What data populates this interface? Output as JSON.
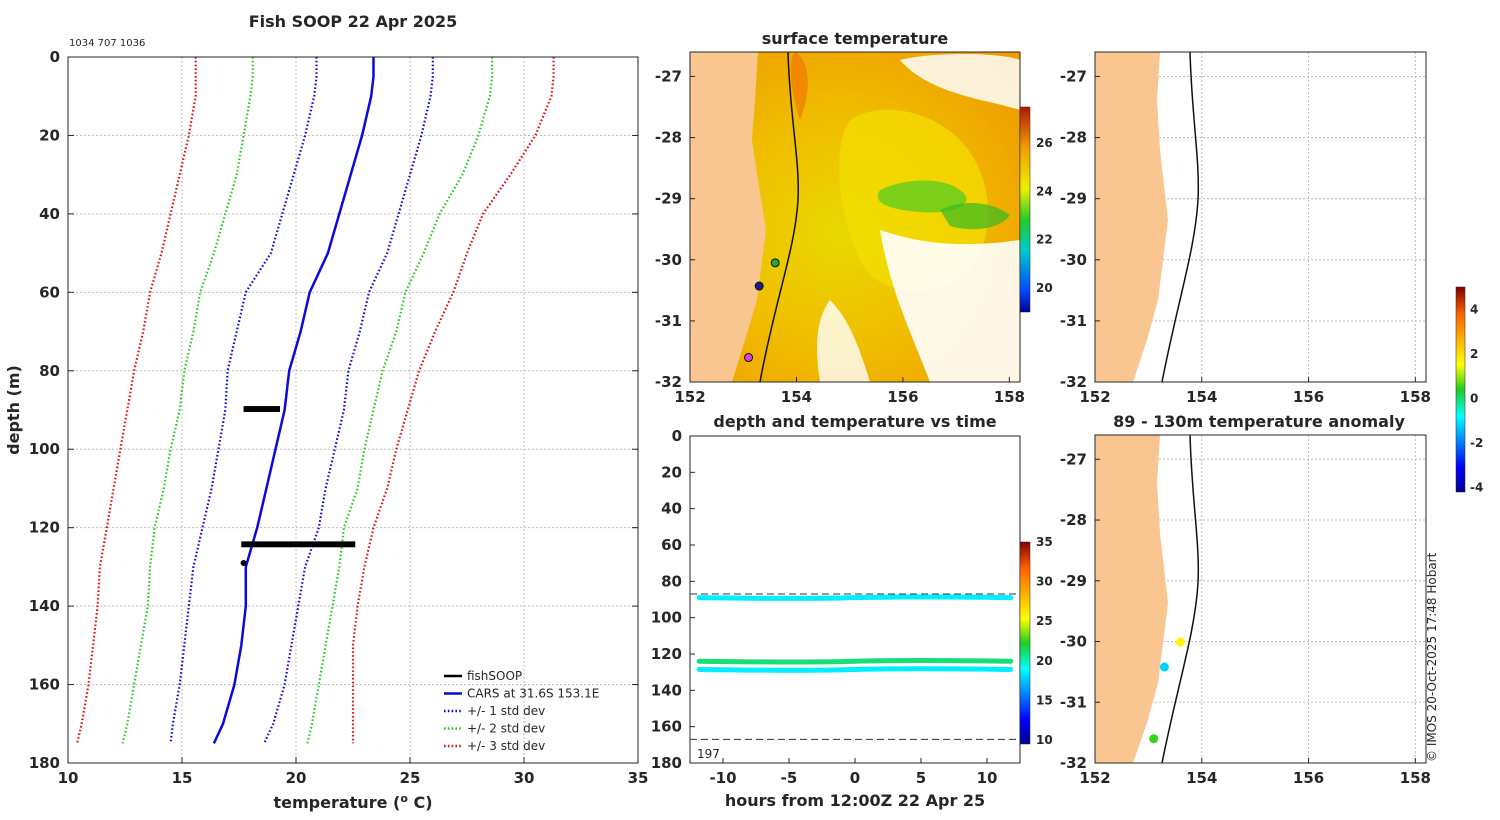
{
  "figure_title": "Fish SOOP 22 Apr 2025",
  "profile_ids": "1034 707 1036",
  "copyright": "© IMOS 20-Oct-2025 17:48 Hobart",
  "colors": {
    "cars": "#0a0adc",
    "std1": "#0a0adc",
    "std2": "#22cc22",
    "std3": "#e01010",
    "fishsoop": "#000000",
    "land": "#f9c590"
  },
  "chart_data": [
    {
      "id": "profile",
      "type": "line",
      "title": "",
      "xlabel": "temperature (o C)",
      "xlabel_main": "temperature (",
      "xlabel_sup": "o",
      "xlabel_tail": " C)",
      "ylabel": "depth (m)",
      "xlim": [
        10,
        35
      ],
      "ylim": [
        0,
        180
      ],
      "xticks": [
        "10",
        "15",
        "20",
        "25",
        "30",
        "35"
      ],
      "yticks": [
        "0",
        "20",
        "40",
        "60",
        "80",
        "100",
        "120",
        "140",
        "160",
        "180"
      ],
      "depth": [
        0,
        5,
        10,
        20,
        30,
        40,
        50,
        60,
        70,
        80,
        90,
        100,
        110,
        120,
        130,
        140,
        150,
        160,
        170,
        175
      ],
      "series": [
        {
          "name": "CARS at 31.6S 153.1E",
          "style": "solid",
          "color": "cars",
          "values": [
            23.4,
            23.4,
            23.3,
            22.9,
            22.4,
            21.9,
            21.4,
            20.6,
            20.2,
            19.7,
            19.5,
            19.1,
            18.7,
            18.3,
            17.8,
            17.8,
            17.6,
            17.3,
            16.8,
            16.4
          ]
        },
        {
          "name": "+/- 1 std dev",
          "style": "dotted",
          "color": "std1",
          "values": [
            20.9,
            20.9,
            20.8,
            20.4,
            19.9,
            19.4,
            18.9,
            17.8,
            17.4,
            17.0,
            16.9,
            16.6,
            16.3,
            15.9,
            15.5,
            15.3,
            15.1,
            14.9,
            14.6,
            14.5
          ]
        },
        {
          "name": "+/- 1 std dev",
          "style": "dotted",
          "color": "std1",
          "values": [
            26.0,
            26.0,
            25.9,
            25.5,
            25.0,
            24.5,
            24.0,
            23.2,
            22.8,
            22.3,
            22.1,
            21.7,
            21.3,
            21.0,
            20.4,
            20.1,
            19.8,
            19.5,
            19.0,
            18.6
          ]
        },
        {
          "name": "+/- 2 std dev",
          "style": "dotted",
          "color": "std2",
          "values": [
            18.1,
            18.1,
            18.0,
            17.7,
            17.4,
            16.9,
            16.4,
            15.8,
            15.5,
            15.1,
            14.9,
            14.5,
            14.2,
            13.8,
            13.6,
            13.5,
            13.2,
            12.9,
            12.6,
            12.4
          ]
        },
        {
          "name": "+/- 2 std dev",
          "style": "dotted",
          "color": "std2",
          "values": [
            28.6,
            28.6,
            28.5,
            28.0,
            27.3,
            26.3,
            25.6,
            24.8,
            24.4,
            23.8,
            23.4,
            23.0,
            22.7,
            22.1,
            21.9,
            21.6,
            21.3,
            21.0,
            20.7,
            20.5
          ]
        },
        {
          "name": "+/- 3 std dev",
          "style": "dotted",
          "color": "std3",
          "values": [
            15.6,
            15.6,
            15.6,
            15.3,
            14.9,
            14.5,
            14.1,
            13.6,
            13.3,
            12.9,
            12.6,
            12.3,
            12.0,
            11.7,
            11.4,
            11.3,
            11.1,
            10.9,
            10.6,
            10.4
          ]
        },
        {
          "name": "+/- 3 std dev",
          "style": "dotted",
          "color": "std3",
          "values": [
            31.3,
            31.3,
            31.2,
            30.5,
            29.4,
            28.2,
            27.5,
            26.9,
            26.1,
            25.4,
            24.9,
            24.4,
            24.0,
            23.4,
            23.0,
            22.7,
            22.5,
            22.5,
            22.5,
            22.5
          ]
        }
      ],
      "fishsoop": [
        {
          "depth_range": [
            89,
            90.5
          ],
          "temp_range": [
            17.7,
            19.3
          ]
        },
        {
          "depth_range": [
            123.5,
            125
          ],
          "temp_range": [
            17.6,
            22.6
          ]
        }
      ],
      "fishsoop_marker": {
        "temp": 17.7,
        "depth": 129
      },
      "legend": {
        "position": "bottom-right",
        "entries": [
          {
            "label": "fishSOOP",
            "color": "fishsoop",
            "style": "solid"
          },
          {
            "label": "CARS at 31.6S 153.1E",
            "color": "cars",
            "style": "solid"
          },
          {
            "label": "+/- 1 std dev",
            "color": "std1",
            "style": "dotted"
          },
          {
            "label": "+/- 2 std dev",
            "color": "std2",
            "style": "dotted"
          },
          {
            "label": "+/- 3 std dev",
            "color": "std3",
            "style": "dotted"
          }
        ]
      }
    },
    {
      "id": "surface_temperature",
      "type": "heatmap",
      "title": "surface temperature",
      "xlim": [
        152,
        158.2
      ],
      "ylim": [
        -32,
        -26.6
      ],
      "xticks": [
        "152",
        "154",
        "156",
        "158"
      ],
      "yticks": [
        "-27",
        "-28",
        "-29",
        "-30",
        "-31",
        "-32"
      ],
      "colorbar": {
        "range": [
          19,
          27.5
        ],
        "ticks": [
          "20",
          "22",
          "24",
          "26"
        ]
      },
      "stations": [
        {
          "lon": 153.6,
          "lat": -30.05,
          "color": "#22aa22"
        },
        {
          "lon": 153.3,
          "lat": -30.43,
          "color": "#1b1b8a"
        },
        {
          "lon": 153.1,
          "lat": -31.6,
          "color": "#e040e0"
        }
      ]
    },
    {
      "id": "depth_vs_time",
      "type": "scatter",
      "title": "depth and temperature vs time",
      "xlabel": "hours from 12:00Z 22 Apr 25",
      "xlim": [
        -12.5,
        12.5
      ],
      "ylim": [
        0,
        180
      ],
      "xticks": [
        "-10",
        "-5",
        "0",
        "5",
        "10"
      ],
      "yticks": [
        "0",
        "20",
        "40",
        "60",
        "80",
        "100",
        "120",
        "140",
        "160",
        "180"
      ],
      "ref_lines": [
        87,
        167
      ],
      "bottom_label": "197",
      "colorbar": {
        "range": [
          9.5,
          35
        ],
        "ticks": [
          "10",
          "15",
          "20",
          "25",
          "30",
          "35"
        ]
      },
      "tracks": [
        {
          "depth": 89,
          "temp": 18.5
        },
        {
          "depth": 124,
          "temp": 21.0
        },
        {
          "depth": 128.5,
          "temp": 18.5
        }
      ]
    },
    {
      "id": "map_empty",
      "type": "scatter",
      "title": "",
      "xlim": [
        152,
        158.2
      ],
      "ylim": [
        -32,
        -26.6
      ],
      "xticks": [
        "152",
        "154",
        "156",
        "158"
      ],
      "yticks": [
        "-27",
        "-28",
        "-29",
        "-30",
        "-31",
        "-32"
      ]
    },
    {
      "id": "anomaly",
      "type": "scatter",
      "title": "89 - 130m temperature anomaly",
      "xlim": [
        152,
        158.2
      ],
      "ylim": [
        -32,
        -26.6
      ],
      "xticks": [
        "152",
        "154",
        "156",
        "158"
      ],
      "yticks": [
        "-27",
        "-28",
        "-29",
        "-30",
        "-31",
        "-32"
      ],
      "colorbar": {
        "range": [
          -4.2,
          5
        ],
        "ticks": [
          "4",
          "2",
          "0",
          "-2",
          "-4"
        ]
      },
      "points": [
        {
          "lon": 153.6,
          "lat": -30.01,
          "anomaly": 1.6
        },
        {
          "lon": 153.3,
          "lat": -30.42,
          "anomaly": -1.2
        },
        {
          "lon": 153.1,
          "lat": -31.6,
          "anomaly": 0.5
        }
      ]
    }
  ]
}
